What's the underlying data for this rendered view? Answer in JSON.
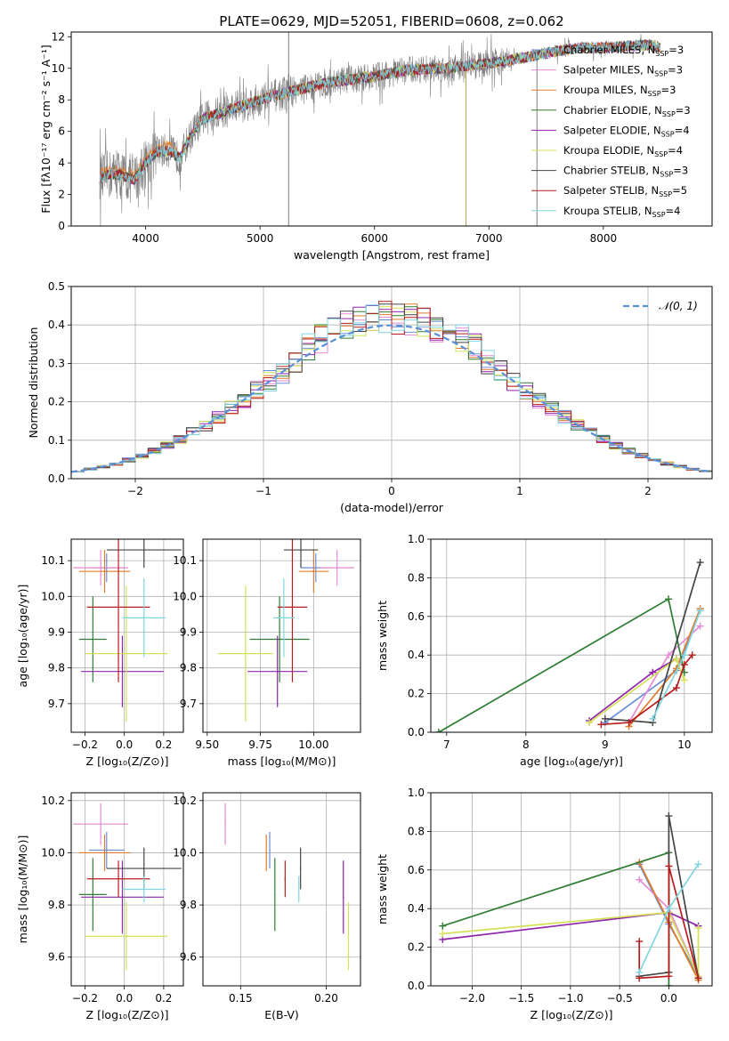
{
  "title": "PLATE=0629, MJD=52051, FIBERID=0608, z=0.062",
  "colors": {
    "chabrier_miles": "#6a8fd8",
    "salpeter_miles": "#e58ad6",
    "kroupa_miles": "#e07b2a",
    "chabrier_elodie": "#2e7d32",
    "salpeter_elodie": "#8e24aa",
    "kroupa_elodie": "#d4e157",
    "chabrier_stelib": "#444444",
    "salpeter_stelib": "#b71c1c",
    "kroupa_stelib": "#7fd6e0",
    "data": "#808080",
    "gaussian": "#5b8fd8",
    "grid": "#b0b0b0"
  },
  "chart_data": [
    {
      "id": "spectrum",
      "type": "line",
      "xlabel": "wavelength [Angstrom, rest frame]",
      "ylabel": "Flux [fλ10⁻¹⁷ erg cm⁻² s⁻¹ A⁻¹]",
      "xlim": [
        3350,
        8950
      ],
      "ylim": [
        0,
        12.3
      ],
      "xticks": [
        "4000",
        "5000",
        "6000",
        "7000",
        "8000"
      ],
      "yticks": [
        "0",
        "2",
        "4",
        "6",
        "8",
        "10",
        "12"
      ],
      "legend_position": "top-right",
      "grid": false,
      "legend": [
        {
          "label": "Chabrier MILES, N",
          "sub": "SSP",
          "tail": "=3",
          "color_key": "chabrier_miles"
        },
        {
          "label": "Salpeter MILES, N",
          "sub": "SSP",
          "tail": "=3",
          "color_key": "salpeter_miles"
        },
        {
          "label": "Kroupa MILES, N",
          "sub": "SSP",
          "tail": "=3",
          "color_key": "kroupa_miles"
        },
        {
          "label": "Chabrier ELODIE, N",
          "sub": "SSP",
          "tail": "=3",
          "color_key": "chabrier_elodie"
        },
        {
          "label": "Salpeter ELODIE, N",
          "sub": "SSP",
          "tail": "=4",
          "color_key": "salpeter_elodie"
        },
        {
          "label": "Kroupa ELODIE, N",
          "sub": "SSP",
          "tail": "=4",
          "color_key": "kroupa_elodie"
        },
        {
          "label": "Chabrier STELIB, N",
          "sub": "SSP",
          "tail": "=3",
          "color_key": "chabrier_stelib"
        },
        {
          "label": "Salpeter STELIB, N",
          "sub": "SSP",
          "tail": "=5",
          "color_key": "salpeter_stelib"
        },
        {
          "label": "Kroupa STELIB, N",
          "sub": "SSP",
          "tail": "=4",
          "color_key": "kroupa_stelib"
        }
      ],
      "continuum": {
        "x": [
          3600,
          3700,
          3800,
          3900,
          4000,
          4100,
          4200,
          4300,
          4400,
          4500,
          4700,
          5000,
          5300,
          5600,
          6000,
          6300,
          6600,
          7000,
          7400,
          7600,
          7800,
          8000,
          8200,
          8400,
          8500
        ],
        "y": [
          3.0,
          3.3,
          3.2,
          2.9,
          4.0,
          4.7,
          4.8,
          4.3,
          5.8,
          6.8,
          7.3,
          8.0,
          8.6,
          9.1,
          9.5,
          9.9,
          10.0,
          10.3,
          10.8,
          11.1,
          11.3,
          11.3,
          11.4,
          11.5,
          11.3
        ]
      }
    },
    {
      "id": "residuals",
      "type": "bar",
      "xlabel": "(data-model)/error",
      "ylabel": "Normed distribution",
      "xlim": [
        -2.5,
        2.5
      ],
      "ylim": [
        0,
        0.5
      ],
      "xticks": [
        "−2",
        "−1",
        "0",
        "1",
        "2"
      ],
      "yticks": [
        "0.0",
        "0.1",
        "0.2",
        "0.3",
        "0.4",
        "0.5"
      ],
      "grid": true,
      "bin_width": 0.1,
      "legend_position": "top-right",
      "gaussian_label": "𝒩(0, 1)"
    },
    {
      "id": "age-vs-z",
      "type": "scatter",
      "xlabel": "Z [log₁₀(Z/Z⊙)]",
      "ylabel": "age  [log₁₀(age/yr)]",
      "xlim": [
        -0.27,
        0.3
      ],
      "ylim": [
        9.62,
        10.16
      ],
      "xticks": [
        "−0.2",
        "0.0",
        "0.2"
      ],
      "yticks": [
        "9.7",
        "9.8",
        "9.9",
        "10.0",
        "10.1"
      ],
      "grid": true,
      "points": [
        {
          "x": -0.09,
          "y": 10.08,
          "ex": 0.09,
          "ey": 0.04,
          "color_key": "chabrier_miles"
        },
        {
          "x": -0.12,
          "y": 10.08,
          "ex": 0.14,
          "ey": 0.05,
          "color_key": "salpeter_miles"
        },
        {
          "x": -0.1,
          "y": 10.07,
          "ex": 0.13,
          "ey": 0.06,
          "color_key": "kroupa_miles"
        },
        {
          "x": -0.16,
          "y": 9.88,
          "ex": 0.07,
          "ey": 0.12,
          "color_key": "chabrier_elodie"
        },
        {
          "x": -0.01,
          "y": 9.79,
          "ex": 0.21,
          "ey": 0.1,
          "color_key": "salpeter_elodie"
        },
        {
          "x": 0.01,
          "y": 9.84,
          "ex": 0.21,
          "ey": 0.19,
          "color_key": "kroupa_elodie"
        },
        {
          "x": 0.1,
          "y": 10.13,
          "ex": 0.19,
          "ey": 0.05,
          "color_key": "chabrier_stelib"
        },
        {
          "x": -0.03,
          "y": 9.97,
          "ex": 0.16,
          "ey": 0.21,
          "color_key": "salpeter_stelib"
        },
        {
          "x": 0.1,
          "y": 9.94,
          "ex": 0.11,
          "ey": 0.11,
          "color_key": "kroupa_stelib"
        }
      ]
    },
    {
      "id": "age-vs-mass",
      "type": "scatter",
      "xlabel": "mass [log₁₀(M/M⊙)]",
      "ylabel": "",
      "xlim": [
        9.48,
        10.22
      ],
      "ylim": [
        9.62,
        10.16
      ],
      "xticks": [
        "9.50",
        "9.75",
        "10.00"
      ],
      "yticks": [
        "9.7",
        "9.8",
        "9.9",
        "10.0",
        "10.1"
      ],
      "grid": true,
      "points": [
        {
          "x": 10.01,
          "y": 10.08,
          "ex": 0.07,
          "ey": 0.04,
          "color_key": "chabrier_miles"
        },
        {
          "x": 10.11,
          "y": 10.08,
          "ex": 0.08,
          "ey": 0.05,
          "color_key": "salpeter_miles"
        },
        {
          "x": 10.0,
          "y": 10.07,
          "ex": 0.07,
          "ey": 0.06,
          "color_key": "kroupa_miles"
        },
        {
          "x": 9.84,
          "y": 9.88,
          "ex": 0.14,
          "ey": 0.12,
          "color_key": "chabrier_elodie"
        },
        {
          "x": 9.83,
          "y": 9.79,
          "ex": 0.14,
          "ey": 0.1,
          "color_key": "salpeter_elodie"
        },
        {
          "x": 9.68,
          "y": 9.84,
          "ex": 0.13,
          "ey": 0.19,
          "color_key": "kroupa_elodie"
        },
        {
          "x": 9.94,
          "y": 10.13,
          "ex": 0.08,
          "ey": 0.05,
          "color_key": "chabrier_stelib"
        },
        {
          "x": 9.9,
          "y": 9.97,
          "ex": 0.07,
          "ey": 0.21,
          "color_key": "salpeter_stelib"
        },
        {
          "x": 9.86,
          "y": 9.94,
          "ex": 0.05,
          "ey": 0.11,
          "color_key": "kroupa_stelib"
        }
      ]
    },
    {
      "id": "weight-vs-age",
      "type": "line",
      "xlabel": "age  [log₁₀(age/yr)]",
      "ylabel": "mass weight",
      "xlim": [
        6.8,
        10.35
      ],
      "ylim": [
        0,
        1.0
      ],
      "xticks": [
        "7",
        "8",
        "9",
        "10"
      ],
      "yticks": [
        "0.0",
        "0.2",
        "0.4",
        "0.6",
        "0.8",
        "1.0"
      ],
      "grid": true,
      "series": [
        {
          "color_key": "chabrier_miles",
          "x": [
            9.0,
            9.9,
            10.2
          ],
          "y": [
            0.05,
            0.32,
            0.63
          ]
        },
        {
          "color_key": "salpeter_miles",
          "x": [
            9.3,
            9.8,
            10.2
          ],
          "y": [
            0.05,
            0.4,
            0.55
          ]
        },
        {
          "color_key": "kroupa_miles",
          "x": [
            9.3,
            9.9,
            10.2
          ],
          "y": [
            0.03,
            0.33,
            0.64
          ]
        },
        {
          "color_key": "chabrier_elodie",
          "x": [
            6.9,
            9.8,
            10.0
          ],
          "y": [
            0.0,
            0.69,
            0.31
          ]
        },
        {
          "color_key": "salpeter_elodie",
          "x": [
            8.8,
            9.6,
            9.9
          ],
          "y": [
            0.06,
            0.31,
            0.38
          ]
        },
        {
          "color_key": "kroupa_elodie",
          "x": [
            8.8,
            9.9,
            10.0
          ],
          "y": [
            0.05,
            0.38,
            0.27
          ]
        },
        {
          "color_key": "chabrier_stelib",
          "x": [
            9.0,
            9.6,
            10.2
          ],
          "y": [
            0.07,
            0.05,
            0.88
          ]
        },
        {
          "color_key": "salpeter_stelib",
          "x": [
            8.95,
            9.3,
            9.9,
            10.0,
            10.1
          ],
          "y": [
            0.04,
            0.05,
            0.23,
            0.35,
            0.4
          ]
        },
        {
          "color_key": "kroupa_stelib",
          "x": [
            9.6,
            10.0,
            10.2
          ],
          "y": [
            0.07,
            0.4,
            0.63
          ]
        }
      ]
    },
    {
      "id": "mass-vs-z",
      "type": "scatter",
      "xlabel": "Z [log₁₀(Z/Z⊙)]",
      "ylabel": "mass [log₁₀(M/M⊙)]",
      "xlim": [
        -0.27,
        0.3
      ],
      "ylim": [
        9.49,
        10.23
      ],
      "xticks": [
        "−0.2",
        "0.0",
        "0.2"
      ],
      "yticks": [
        "9.6",
        "9.8",
        "10.0",
        "10.2"
      ],
      "grid": true,
      "points": [
        {
          "x": -0.09,
          "y": 10.01,
          "ex": 0.09,
          "ey": 0.07,
          "color_key": "chabrier_miles"
        },
        {
          "x": -0.12,
          "y": 10.11,
          "ex": 0.14,
          "ey": 0.08,
          "color_key": "salpeter_miles"
        },
        {
          "x": -0.1,
          "y": 10.0,
          "ex": 0.13,
          "ey": 0.07,
          "color_key": "kroupa_miles"
        },
        {
          "x": -0.16,
          "y": 9.84,
          "ex": 0.07,
          "ey": 0.14,
          "color_key": "chabrier_elodie"
        },
        {
          "x": -0.01,
          "y": 9.83,
          "ex": 0.21,
          "ey": 0.14,
          "color_key": "salpeter_elodie"
        },
        {
          "x": 0.01,
          "y": 9.68,
          "ex": 0.21,
          "ey": 0.13,
          "color_key": "kroupa_elodie"
        },
        {
          "x": 0.1,
          "y": 9.94,
          "ex": 0.19,
          "ey": 0.08,
          "color_key": "chabrier_stelib"
        },
        {
          "x": -0.03,
          "y": 9.9,
          "ex": 0.16,
          "ey": 0.07,
          "color_key": "salpeter_stelib"
        },
        {
          "x": 0.1,
          "y": 9.86,
          "ex": 0.11,
          "ey": 0.05,
          "color_key": "kroupa_stelib"
        }
      ]
    },
    {
      "id": "mass-vs-ebv",
      "type": "scatter",
      "xlabel": "E(B-V)",
      "ylabel": "",
      "xlim": [
        0.128,
        0.22
      ],
      "ylim": [
        9.49,
        10.23
      ],
      "xticks": [
        "0.15",
        "0.20"
      ],
      "yticks": [
        "9.6",
        "9.8",
        "10.0",
        "10.2"
      ],
      "grid": true,
      "points": [
        {
          "x": 0.167,
          "y": 10.01,
          "ex": 0.0,
          "ey": 0.07,
          "color_key": "chabrier_miles"
        },
        {
          "x": 0.141,
          "y": 10.11,
          "ex": 0.0,
          "ey": 0.08,
          "color_key": "salpeter_miles"
        },
        {
          "x": 0.165,
          "y": 10.0,
          "ex": 0.0,
          "ey": 0.07,
          "color_key": "kroupa_miles"
        },
        {
          "x": 0.17,
          "y": 9.84,
          "ex": 0.0,
          "ey": 0.14,
          "color_key": "chabrier_elodie"
        },
        {
          "x": 0.21,
          "y": 9.83,
          "ex": 0.0,
          "ey": 0.14,
          "color_key": "salpeter_elodie"
        },
        {
          "x": 0.213,
          "y": 9.68,
          "ex": 0.0,
          "ey": 0.13,
          "color_key": "kroupa_elodie"
        },
        {
          "x": 0.185,
          "y": 9.94,
          "ex": 0.0,
          "ey": 0.08,
          "color_key": "chabrier_stelib"
        },
        {
          "x": 0.176,
          "y": 9.9,
          "ex": 0.0,
          "ey": 0.07,
          "color_key": "salpeter_stelib"
        },
        {
          "x": 0.184,
          "y": 9.86,
          "ex": 0.0,
          "ey": 0.05,
          "color_key": "kroupa_stelib"
        }
      ]
    },
    {
      "id": "weight-vs-z",
      "type": "line",
      "xlabel": "Z [log₁₀(Z/Z⊙)]",
      "ylabel": "mass weight",
      "xlim": [
        -2.42,
        0.44
      ],
      "ylim": [
        0,
        1.0
      ],
      "xticks": [
        "−2.0",
        "−1.5",
        "−1.0",
        "−0.5",
        "0.0"
      ],
      "yticks": [
        "0.0",
        "0.2",
        "0.4",
        "0.6",
        "0.8",
        "1.0"
      ],
      "grid": true,
      "series": [
        {
          "color_key": "chabrier_miles",
          "x": [
            -0.3,
            0.0,
            0.3
          ],
          "y": [
            0.63,
            0.32,
            0.05
          ]
        },
        {
          "color_key": "salpeter_miles",
          "x": [
            -0.3,
            0.0,
            0.3
          ],
          "y": [
            0.55,
            0.4,
            0.05
          ]
        },
        {
          "color_key": "kroupa_miles",
          "x": [
            -0.3,
            0.0,
            0.3
          ],
          "y": [
            0.64,
            0.33,
            0.03
          ]
        },
        {
          "color_key": "chabrier_elodie",
          "x": [
            -2.3,
            0.0,
            0.0
          ],
          "y": [
            0.31,
            0.69,
            0.0
          ]
        },
        {
          "color_key": "salpeter_elodie",
          "x": [
            -2.3,
            0.0,
            0.3
          ],
          "y": [
            0.24,
            0.38,
            0.31
          ]
        },
        {
          "color_key": "kroupa_elodie",
          "x": [
            -2.3,
            0.0,
            0.3,
            0.3
          ],
          "y": [
            0.27,
            0.38,
            0.05,
            0.3
          ]
        },
        {
          "color_key": "chabrier_stelib",
          "x": [
            -0.3,
            0.0,
            0.0,
            0.3
          ],
          "y": [
            0.05,
            0.07,
            0.88,
            0.04
          ]
        },
        {
          "color_key": "salpeter_stelib",
          "x": [
            -0.3,
            -0.3,
            0.0,
            0.0,
            0.3
          ],
          "y": [
            0.23,
            0.04,
            0.05,
            0.62,
            0.04
          ]
        },
        {
          "color_key": "kroupa_stelib",
          "x": [
            -0.3,
            0.0,
            0.3
          ],
          "y": [
            0.07,
            0.4,
            0.63
          ]
        }
      ]
    }
  ]
}
